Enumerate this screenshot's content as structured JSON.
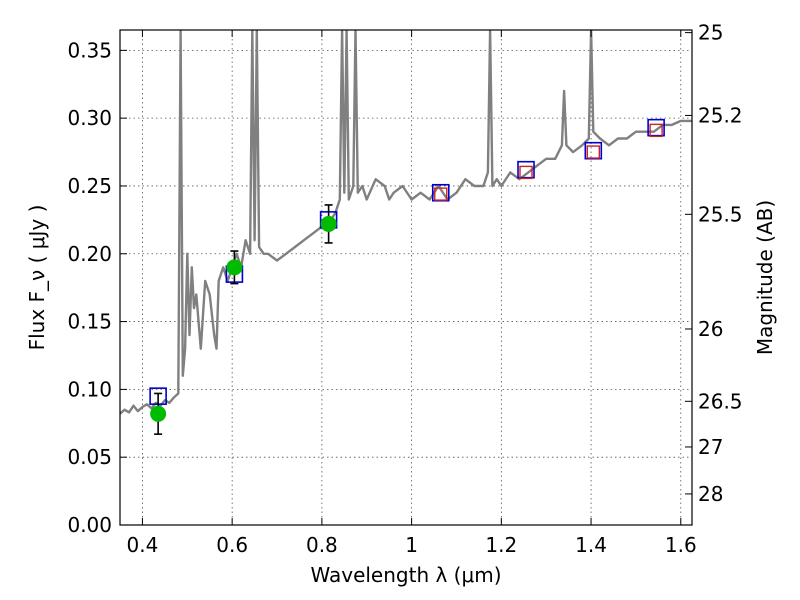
{
  "chart_data": {
    "type": "line",
    "xlabel": "Wavelength  λ (μm)",
    "ylabel": "Flux  F_ν  ( μJy )",
    "y2label": "Magnitude (AB)",
    "xlim": [
      0.35,
      1.625
    ],
    "ylim": [
      0.0,
      0.365
    ],
    "grid": true,
    "x_ticks": [
      {
        "value": 0.4,
        "label": "0.4"
      },
      {
        "value": 0.6,
        "label": "0.6"
      },
      {
        "value": 0.8,
        "label": "0.8"
      },
      {
        "value": 1.0,
        "label": "1"
      },
      {
        "value": 1.2,
        "label": "1.2"
      },
      {
        "value": 1.4,
        "label": "1.4"
      },
      {
        "value": 1.6,
        "label": "1.6"
      }
    ],
    "y_ticks": [
      {
        "value": 0.0,
        "label": "0.00"
      },
      {
        "value": 0.05,
        "label": "0.05"
      },
      {
        "value": 0.1,
        "label": "0.10"
      },
      {
        "value": 0.15,
        "label": "0.15"
      },
      {
        "value": 0.2,
        "label": "0.20"
      },
      {
        "value": 0.25,
        "label": "0.25"
      },
      {
        "value": 0.3,
        "label": "0.30"
      },
      {
        "value": 0.35,
        "label": "0.35"
      }
    ],
    "y2_ticks": [
      {
        "label": "25",
        "mag": 25.0
      },
      {
        "label": "25.2",
        "mag": 25.2
      },
      {
        "label": "25.5",
        "mag": 25.5
      },
      {
        "label": "26",
        "mag": 26.0
      },
      {
        "label": "26.5",
        "mag": 26.5
      },
      {
        "label": "27",
        "mag": 27.0
      },
      {
        "label": "28",
        "mag": 28.0
      }
    ],
    "colors": {
      "spectrum": "#808080",
      "observed": "#00bb00",
      "model_band": "#0000cc",
      "model_ir": "#cc2222",
      "error_bar": "#000000",
      "grid": "#555555"
    },
    "series": [
      {
        "type": "line",
        "x": [
          0.35,
          0.36,
          0.37,
          0.38,
          0.39,
          0.4,
          0.41,
          0.42,
          0.43,
          0.44,
          0.45,
          0.46,
          0.47,
          0.48,
          0.485,
          0.49,
          0.495,
          0.5,
          0.505,
          0.51,
          0.515,
          0.52,
          0.53,
          0.54,
          0.55,
          0.56,
          0.565,
          0.57,
          0.58,
          0.59,
          0.6,
          0.61,
          0.62,
          0.63,
          0.64,
          0.645,
          0.65,
          0.655,
          0.66,
          0.67,
          0.68,
          0.7,
          0.72,
          0.74,
          0.76,
          0.78,
          0.8,
          0.82,
          0.83,
          0.84,
          0.845,
          0.85,
          0.855,
          0.86,
          0.87,
          0.875,
          0.88,
          0.89,
          0.9,
          0.92,
          0.94,
          0.95,
          0.96,
          0.98,
          1.0,
          1.02,
          1.04,
          1.06,
          1.08,
          1.1,
          1.12,
          1.14,
          1.16,
          1.17,
          1.175,
          1.18,
          1.19,
          1.2,
          1.22,
          1.24,
          1.26,
          1.28,
          1.3,
          1.32,
          1.335,
          1.34,
          1.345,
          1.36,
          1.38,
          1.395,
          1.4,
          1.405,
          1.42,
          1.44,
          1.46,
          1.48,
          1.5,
          1.52,
          1.54,
          1.56,
          1.58,
          1.6,
          1.625
        ],
        "y": [
          0.082,
          0.085,
          0.083,
          0.088,
          0.084,
          0.087,
          0.089,
          0.086,
          0.09,
          0.088,
          0.092,
          0.09,
          0.094,
          0.097,
          0.365,
          0.11,
          0.13,
          0.2,
          0.14,
          0.19,
          0.16,
          0.17,
          0.13,
          0.18,
          0.17,
          0.14,
          0.13,
          0.18,
          0.19,
          0.18,
          0.19,
          0.2,
          0.19,
          0.21,
          0.2,
          0.365,
          0.21,
          0.365,
          0.205,
          0.2,
          0.2,
          0.195,
          0.2,
          0.205,
          0.21,
          0.215,
          0.22,
          0.225,
          0.23,
          0.24,
          0.365,
          0.245,
          0.365,
          0.24,
          0.25,
          0.365,
          0.245,
          0.25,
          0.24,
          0.255,
          0.25,
          0.24,
          0.245,
          0.25,
          0.24,
          0.245,
          0.24,
          0.25,
          0.24,
          0.245,
          0.255,
          0.25,
          0.25,
          0.26,
          0.365,
          0.25,
          0.255,
          0.25,
          0.26,
          0.255,
          0.26,
          0.265,
          0.27,
          0.27,
          0.28,
          0.32,
          0.28,
          0.275,
          0.28,
          0.285,
          0.365,
          0.29,
          0.285,
          0.28,
          0.285,
          0.285,
          0.29,
          0.29,
          0.29,
          0.295,
          0.295,
          0.298,
          0.298
        ]
      },
      {
        "type": "scatter",
        "marker": "circle",
        "x": [
          0.435,
          0.605,
          0.815
        ],
        "y": [
          0.082,
          0.19,
          0.222
        ],
        "err": [
          0.015,
          0.012,
          0.014
        ]
      },
      {
        "type": "scatter",
        "marker": "open-square",
        "x": [
          0.435,
          0.605,
          0.815,
          1.065,
          1.255,
          1.405,
          1.545
        ],
        "y": [
          0.095,
          0.185,
          0.225,
          0.245,
          0.262,
          0.276,
          0.293
        ]
      },
      {
        "type": "scatter",
        "marker": "open-square",
        "x": [
          1.065,
          1.255,
          1.405,
          1.545
        ],
        "y": [
          0.244,
          0.26,
          0.275,
          0.291
        ]
      }
    ]
  }
}
